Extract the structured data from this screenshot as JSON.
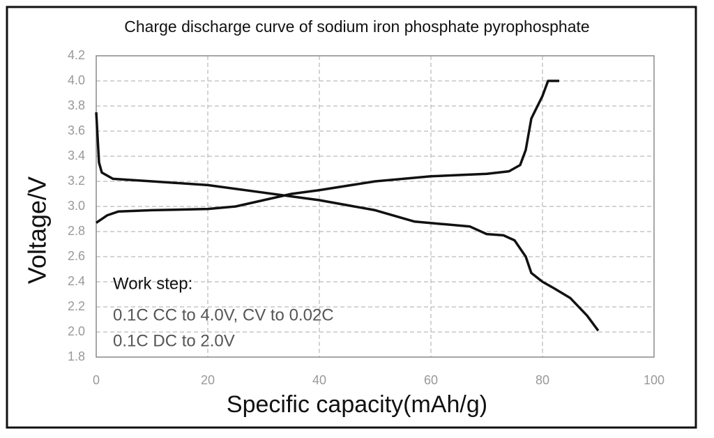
{
  "chart_data": {
    "type": "line",
    "title": "Charge discharge curve of sodium iron phosphate pyrophosphate",
    "x_label": "Specific capacity(mAh/g)",
    "y_label": "Voltage/V",
    "annotations": [
      "Work step:",
      "0.1C CC to 4.0V, CV to 0.02C",
      "0.1C DC to 2.0V"
    ],
    "xlim": [
      0,
      100
    ],
    "xticks": [
      0,
      20,
      40,
      60,
      80,
      100
    ],
    "ylim": [
      1.8,
      4.2
    ],
    "yticks": [
      1.8,
      {
        "value": 2,
        "label": "2.0"
      },
      2.2,
      2.4,
      2.6,
      2.8,
      {
        "value": 3,
        "label": "3.0"
      },
      3.2,
      3.4,
      3.6,
      3.8,
      {
        "value": 4,
        "label": "4.0"
      },
      4.2
    ],
    "grid": true,
    "series": [
      {
        "color": "#111111",
        "x": [
          0,
          2,
          4,
          10,
          20,
          25,
          30,
          35,
          40,
          50,
          60,
          70,
          74,
          76,
          77,
          78,
          80,
          81,
          83
        ],
        "values": [
          2.87,
          2.93,
          2.96,
          2.97,
          2.98,
          3.0,
          3.05,
          3.1,
          3.13,
          3.2,
          3.24,
          3.26,
          3.28,
          3.33,
          3.45,
          3.7,
          3.88,
          4.0,
          4.0
        ]
      },
      {
        "color": "#111111",
        "x": [
          0,
          0.5,
          1,
          3,
          10,
          20,
          30,
          40,
          50,
          57,
          62,
          67,
          70,
          73,
          75,
          77,
          78,
          80,
          82,
          85,
          88,
          90
        ],
        "values": [
          3.75,
          3.35,
          3.27,
          3.22,
          3.2,
          3.17,
          3.11,
          3.05,
          2.97,
          2.88,
          2.86,
          2.84,
          2.78,
          2.77,
          2.73,
          2.6,
          2.47,
          2.4,
          2.35,
          2.27,
          2.13,
          2.01
        ]
      }
    ]
  }
}
